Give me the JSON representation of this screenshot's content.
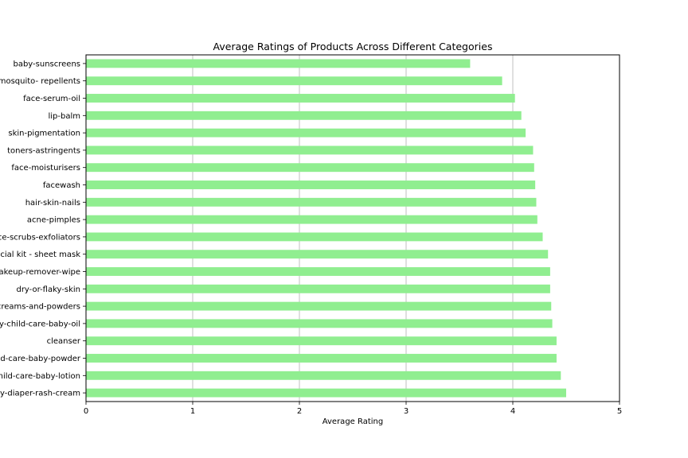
{
  "chart_data": {
    "type": "bar",
    "orientation": "horizontal",
    "title": "Average Ratings of Products Across Different Categories",
    "xlabel": "Average Rating",
    "ylabel": "",
    "xlim": [
      0,
      5
    ],
    "xticks": [
      "0",
      "1",
      "2",
      "3",
      "4",
      "5"
    ],
    "grid": "vertical",
    "bar_color": "#90ee90",
    "categories": [
      "baby-sunscreens",
      "mosquito- repellents",
      "face-serum-oil",
      "lip-balm",
      "skin-pigmentation",
      "toners-astringents",
      "face-moisturisers",
      "facewash",
      "hair-skin-nails",
      "acne-pimples",
      "face-scrubs-exfoliators",
      "facial kit - sheet mask",
      "makeup-remover-wipe",
      "dry-or-flaky-skin",
      "creams-and-powders",
      "baby-child-care-baby-oil",
      "cleanser",
      "child-care-baby-powder",
      "child-care-baby-lotion",
      "baby-diaper-rash-cream"
    ],
    "values": [
      3.6,
      3.9,
      4.02,
      4.08,
      4.12,
      4.19,
      4.2,
      4.21,
      4.22,
      4.23,
      4.28,
      4.33,
      4.35,
      4.35,
      4.36,
      4.37,
      4.41,
      4.41,
      4.45,
      4.5
    ]
  }
}
